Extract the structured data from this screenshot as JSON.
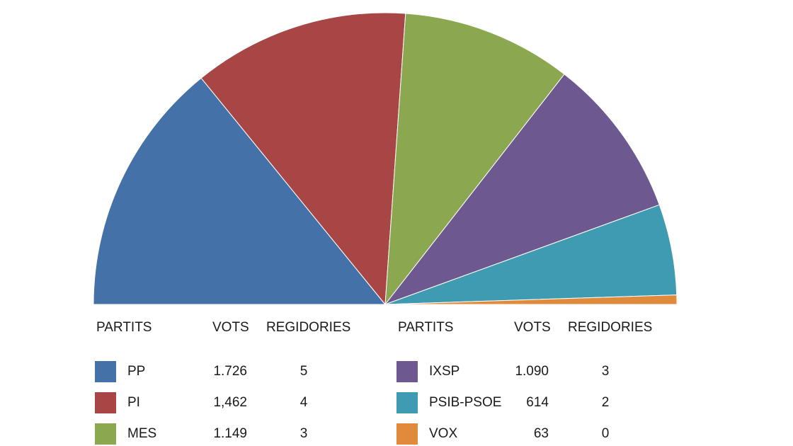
{
  "chart_data": {
    "type": "pie",
    "variant": "semicircle",
    "legend_headers": {
      "party": "PARTITS",
      "votes": "VOTS",
      "seats": "REGIDORIES"
    },
    "series": [
      {
        "name": "PP",
        "votes": "1.726",
        "seats": "5",
        "value": 1726,
        "color": "#4472A8"
      },
      {
        "name": "PI",
        "votes": "1,462",
        "seats": "4",
        "value": 1462,
        "color": "#A84646"
      },
      {
        "name": "MES",
        "votes": "1.149",
        "seats": "3",
        "value": 1149,
        "color": "#8BA850"
      },
      {
        "name": "IXSP",
        "votes": "1.090",
        "seats": "3",
        "value": 1090,
        "color": "#6E5890"
      },
      {
        "name": "PSIB-PSOE",
        "votes": "614",
        "seats": "2",
        "value": 614,
        "color": "#3F9BB2"
      },
      {
        "name": "VOX",
        "votes": "63",
        "seats": "0",
        "value": 63,
        "color": "#E08A3C"
      }
    ]
  }
}
